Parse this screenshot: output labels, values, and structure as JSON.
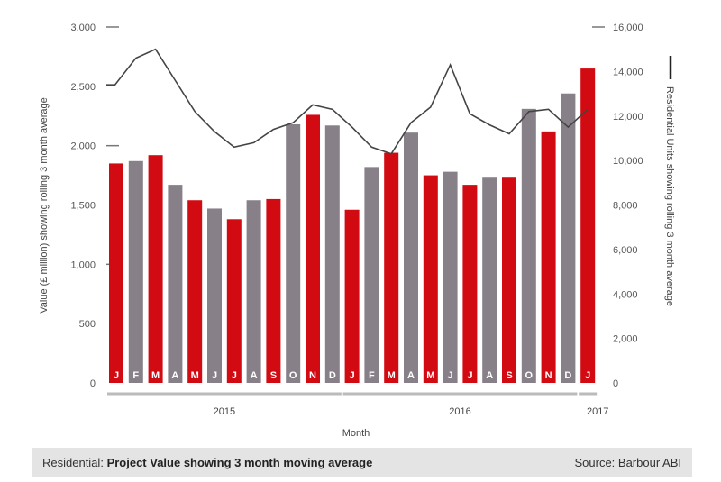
{
  "chart_data": {
    "type": "bar",
    "title": "Residential: Project Value showing 3 month moving average",
    "xlabel": "Month",
    "ylabel": "Value (£ million) showing rolling 3 month average",
    "y2label": "Residential Units showing rolling 3 month average",
    "ylim": [
      0,
      3000
    ],
    "y2lim": [
      0,
      16000
    ],
    "yticks": [
      "0",
      "500",
      "1,000",
      "1,500",
      "2,000",
      "2,500",
      "3,000"
    ],
    "y2ticks": [
      "0",
      "2,000",
      "4,000",
      "6,000",
      "8,000",
      "10,000",
      "12,000",
      "14,000",
      "16,000"
    ],
    "years": [
      {
        "label": "2015",
        "count": 12
      },
      {
        "label": "2016",
        "count": 12
      },
      {
        "label": "2017",
        "count": 1
      }
    ],
    "categories": [
      "J",
      "F",
      "M",
      "A",
      "M",
      "J",
      "J",
      "A",
      "S",
      "O",
      "N",
      "D",
      "J",
      "F",
      "M",
      "A",
      "M",
      "J",
      "J",
      "A",
      "S",
      "O",
      "N",
      "D",
      "J"
    ],
    "series": [
      {
        "name": "Project Value (£ million)",
        "type": "bar",
        "axis": "left",
        "values": [
          1850,
          1870,
          1920,
          1670,
          1540,
          1470,
          1380,
          1540,
          1550,
          2180,
          2260,
          2170,
          1460,
          1820,
          1940,
          2110,
          1750,
          1780,
          1670,
          1730,
          1730,
          2310,
          2120,
          2440,
          2650
        ]
      },
      {
        "name": "Residential Units",
        "type": "line",
        "axis": "right",
        "values": [
          13400,
          14600,
          15000,
          13600,
          12200,
          11300,
          10600,
          10800,
          11400,
          11700,
          12500,
          12300,
          11500,
          10600,
          10300,
          11700,
          12400,
          14300,
          12100,
          11600,
          11200,
          12200,
          12300,
          11500,
          12300
        ]
      }
    ],
    "colors": {
      "red": "#d20a11",
      "grey": "#878089",
      "line": "#444444"
    }
  },
  "caption": {
    "bold_prefix_normal": "Residential:",
    "bold_text": "Project Value showing 3 month moving average",
    "source": "Source: Barbour ABI"
  }
}
